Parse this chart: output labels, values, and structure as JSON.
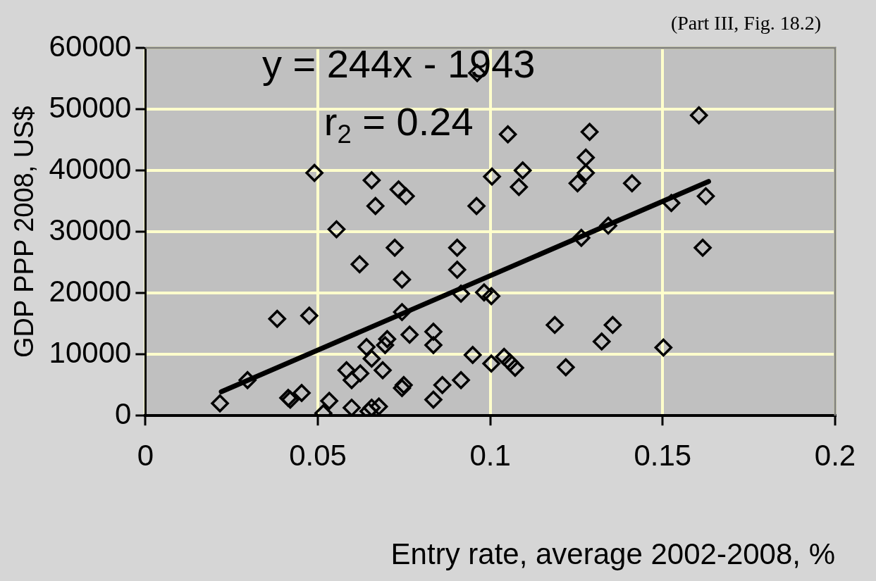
{
  "chart_data": {
    "type": "scatter",
    "xlabel": "Entry rate, average 2002-2008, %",
    "ylabel": "GDP PPP 2008, US$",
    "annotations": [
      "(Part III, Fig. 18.2)",
      "y = 244x - 1943",
      "r$_{2}$ = 0.24"
    ],
    "xlim": [
      0,
      0.2
    ],
    "xticks": [
      0,
      0.05,
      0.1,
      0.15,
      0.2
    ],
    "ylim": [
      0,
      60000
    ],
    "yticks": [
      0,
      10000,
      20000,
      30000,
      40000,
      50000,
      60000
    ],
    "grid": true,
    "legend": false,
    "series": [
      {
        "type": "scatter",
        "marker": "diamond",
        "color": "#000000",
        "x": [
          0.0962,
          0.1051,
          0.1288,
          0.1605,
          0.1277,
          0.1277,
          0.1253,
          0.1411,
          0.1005,
          0.1094,
          0.1083,
          0.096,
          0.1625,
          0.1525,
          0.1342,
          0.1264,
          0.1616,
          0.1187,
          0.1355,
          0.1323,
          0.1502,
          0.1219,
          0.049,
          0.0656,
          0.0734,
          0.0755,
          0.0667,
          0.0554,
          0.0723,
          0.0904,
          0.0621,
          0.0904,
          0.0744,
          0.0915,
          0.0982,
          0.1003,
          0.0382,
          0.0475,
          0.0744,
          0.0835,
          0.0835,
          0.0766,
          0.0701,
          0.0695,
          0.0641,
          0.0656,
          0.0688,
          0.0583,
          0.0598,
          0.0623,
          0.0744,
          0.0749,
          0.0861,
          0.0835,
          0.0915,
          0.0949,
          0.1003,
          0.104,
          0.1057,
          0.1072,
          0.0216,
          0.0296,
          0.042,
          0.0414,
          0.0453,
          0.0533,
          0.0516,
          0.0598,
          0.0656,
          0.0677,
          0.0647
        ],
        "values": [
          55900,
          45900,
          46300,
          49000,
          42100,
          39600,
          37900,
          37900,
          39000,
          40000,
          37300,
          34200,
          35800,
          34700,
          31000,
          29000,
          27400,
          14800,
          14800,
          12100,
          11100,
          7900,
          39600,
          38400,
          36900,
          35800,
          34200,
          30400,
          27400,
          27400,
          24700,
          23800,
          22200,
          19900,
          20100,
          19500,
          15800,
          16300,
          16900,
          13700,
          11500,
          13200,
          12500,
          11500,
          11200,
          9300,
          7400,
          7400,
          5800,
          6900,
          4500,
          5000,
          5000,
          2600,
          5800,
          9900,
          8500,
          9600,
          8700,
          7800,
          2000,
          5800,
          2600,
          2900,
          3700,
          2400,
          400,
          1300,
          1300,
          1500,
          700
        ]
      },
      {
        "type": "line",
        "marker": "none",
        "color": "#000000",
        "x": [
          0.022,
          0.1633
        ],
        "values": [
          3900,
          38200
        ]
      }
    ]
  }
}
